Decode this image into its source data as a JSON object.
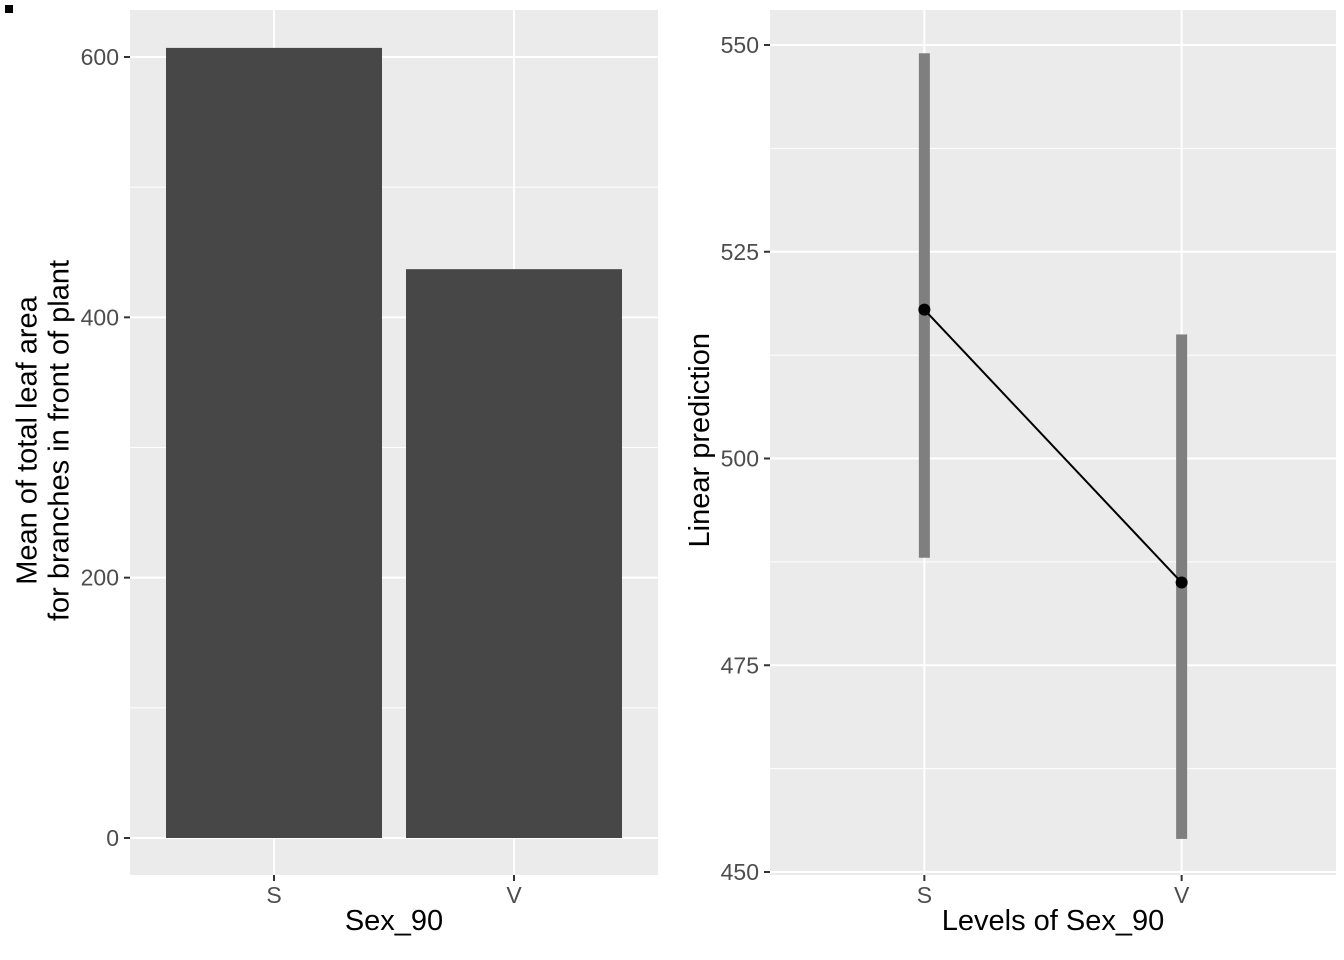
{
  "figure": {
    "background": "#FFFFFF",
    "panel_background": "#EBEBEB",
    "grid_color": "#FFFFFF",
    "tick_color": "#333333",
    "tick_label_color": "#4D4D4D"
  },
  "chart_data": [
    {
      "type": "bar",
      "title": "",
      "xlabel": "Sex_90",
      "ylabel": "Mean of total leaf area\nfor branches in front of plant",
      "ylabel_lines": [
        "Mean of total leaf area",
        "for branches in front of plant"
      ],
      "categories": [
        "S",
        "V"
      ],
      "values": [
        607,
        437
      ],
      "ylim": [
        0,
        600
      ],
      "yticks": [
        0,
        200,
        400,
        600
      ],
      "yticks_minor": [
        100,
        300,
        500
      ],
      "bar_color": "#474747",
      "grid": true,
      "legend": false
    },
    {
      "type": "scatter",
      "title": "",
      "xlabel": "Levels of Sex_90",
      "ylabel": "Linear prediction",
      "categories": [
        "S",
        "V"
      ],
      "series": [
        {
          "name": "Linear prediction",
          "values": [
            518,
            485
          ],
          "ci_low": [
            488,
            454
          ],
          "ci_high": [
            549,
            515
          ]
        }
      ],
      "ylim": [
        450,
        550
      ],
      "yticks": [
        450,
        475,
        500,
        525,
        550
      ],
      "yticks_minor": [
        462.5,
        487.5,
        512.5,
        537.5
      ],
      "point_color": "#000000",
      "line_color": "#000000",
      "ci_color": "#7F7F7F",
      "grid": true,
      "legend": false
    }
  ]
}
